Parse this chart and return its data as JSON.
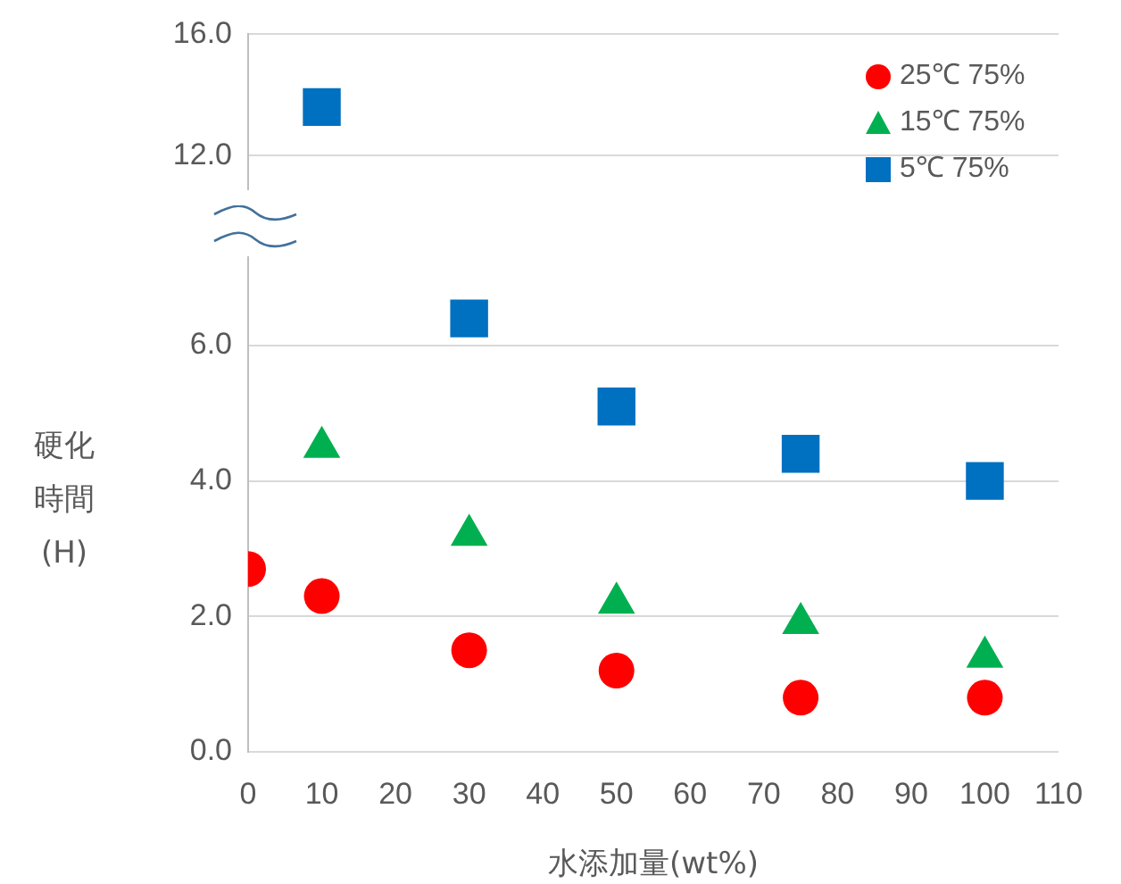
{
  "chart_data": [
    {
      "type": "scatter",
      "x": [
        10
      ],
      "xlim": [
        0,
        110
      ],
      "xticks": [
        0,
        10,
        20,
        30,
        40,
        50,
        60,
        70,
        80,
        90,
        100,
        110
      ],
      "ylim": [
        10.9,
        16
      ],
      "yticks": [
        {
          "value": 12,
          "label": "12.0"
        },
        {
          "value": 16,
          "label": "16.0"
        }
      ],
      "tick_labels": "y",
      "grid": "y",
      "series": [
        {
          "color": "#0070c0",
          "marker": "square",
          "values": [
            13.6
          ]
        }
      ]
    },
    {
      "type": "scatter",
      "x": [
        0,
        10,
        30,
        50,
        75,
        100
      ],
      "xlim": [
        0,
        110
      ],
      "xticks": [
        0,
        10,
        20,
        30,
        40,
        50,
        60,
        70,
        80,
        90,
        100,
        110
      ],
      "ylim": [
        0,
        7.3
      ],
      "yticks": [
        {
          "value": 0,
          "label": "0.0"
        },
        {
          "value": 2,
          "label": "2.0"
        },
        {
          "value": 4,
          "label": "4.0"
        },
        {
          "value": 6,
          "label": "6.0"
        }
      ],
      "xlabel": "水添加量(wt%)",
      "ylabel": "硬化時間(H)",
      "grid": "y",
      "legend": "top right",
      "series": [
        {
          "name": "25℃ 75%",
          "color": "#ff0000",
          "marker": "circle",
          "values": [
            2.7,
            2.3,
            1.5,
            1.2,
            0.8,
            0.8
          ]
        },
        {
          "name": "15℃ 75%",
          "color": "#00b050",
          "marker": "triangle",
          "values": [
            null,
            4.5,
            3.2,
            2.2,
            1.9,
            1.4
          ]
        },
        {
          "name": "5℃ 75%",
          "color": "#0070c0",
          "marker": "square",
          "values": [
            null,
            null,
            6.4,
            5.1,
            4.4,
            4.0
          ]
        }
      ]
    }
  ]
}
